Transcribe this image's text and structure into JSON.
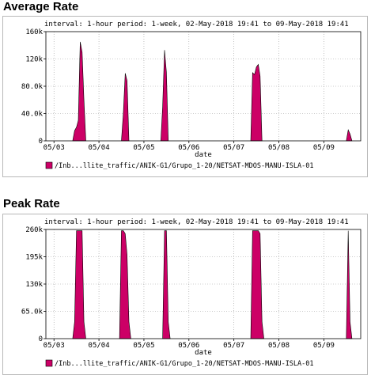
{
  "sections": [
    {
      "title": "Average Rate"
    },
    {
      "title": "Peak Rate"
    }
  ],
  "colors": {
    "series": "#cc0066",
    "outline": "#000000",
    "grid": "#999999",
    "frame": "#b8b8b8"
  },
  "chart_data": [
    {
      "type": "area",
      "header": "interval: 1-hour  period: 1-week, 02-May-2018 19:41 to 09-May-2018 19:41",
      "xlabel": "date",
      "ylabel": "",
      "x_tick_labels": [
        "05/03",
        "05/04",
        "05/05",
        "05/06",
        "05/07",
        "05/08",
        "05/09"
      ],
      "y_tick_labels": [
        "0",
        "40.0k",
        "80.0k",
        "120k",
        "160k"
      ],
      "ylim": [
        0,
        160000
      ],
      "xlim": [
        "2018-05-02T19:41",
        "2018-05-09T19:41"
      ],
      "grid": true,
      "legend": {
        "position": "bottom-left"
      },
      "series": [
        {
          "name": "/Inb...llite_traffic/ANIK-G1/Grupo_1-20/NETSAT-MDOS-MANU-ISLA-01",
          "points": [
            [
              "2018-05-03T10:00",
              0
            ],
            [
              "2018-05-03T11:00",
              15000
            ],
            [
              "2018-05-03T12:00",
              20000
            ],
            [
              "2018-05-03T13:00",
              30000
            ],
            [
              "2018-05-03T14:00",
              145000
            ],
            [
              "2018-05-03T15:00",
              130000
            ],
            [
              "2018-05-03T16:00",
              60000
            ],
            [
              "2018-05-03T17:00",
              0
            ],
            [
              "2018-05-04T12:00",
              0
            ],
            [
              "2018-05-04T13:00",
              40000
            ],
            [
              "2018-05-04T14:00",
              99000
            ],
            [
              "2018-05-04T15:00",
              88000
            ],
            [
              "2018-05-04T16:00",
              0
            ],
            [
              "2018-05-05T09:00",
              0
            ],
            [
              "2018-05-05T10:00",
              50000
            ],
            [
              "2018-05-05T11:00",
              133000
            ],
            [
              "2018-05-05T12:00",
              100000
            ],
            [
              "2018-05-05T13:00",
              0
            ],
            [
              "2018-05-07T09:00",
              0
            ],
            [
              "2018-05-07T10:00",
              100000
            ],
            [
              "2018-05-07T11:00",
              97000
            ],
            [
              "2018-05-07T12:00",
              108000
            ],
            [
              "2018-05-07T13:00",
              112000
            ],
            [
              "2018-05-07T14:00",
              95000
            ],
            [
              "2018-05-07T15:00",
              0
            ],
            [
              "2018-05-09T12:00",
              0
            ],
            [
              "2018-05-09T13:00",
              16000
            ],
            [
              "2018-05-09T14:00",
              10000
            ],
            [
              "2018-05-09T15:00",
              0
            ]
          ]
        }
      ]
    },
    {
      "type": "area",
      "header": "interval: 1-hour  period: 1-week, 02-May-2018 19:41 to 09-May-2018 19:41",
      "xlabel": "date",
      "ylabel": "",
      "x_tick_labels": [
        "05/03",
        "05/04",
        "05/05",
        "05/06",
        "05/07",
        "05/08",
        "05/09"
      ],
      "y_tick_labels": [
        "0",
        "65.0k",
        "130k",
        "195k",
        "260k"
      ],
      "ylim": [
        0,
        260000
      ],
      "xlim": [
        "2018-05-02T19:41",
        "2018-05-09T19:41"
      ],
      "grid": true,
      "legend": {
        "position": "bottom-left"
      },
      "series": [
        {
          "name": "/Inb...llite_traffic/ANIK-G1/Grupo_1-20/NETSAT-MDOS-MANU-ISLA-01",
          "points": [
            [
              "2018-05-03T10:00",
              0
            ],
            [
              "2018-05-03T11:00",
              40000
            ],
            [
              "2018-05-03T12:00",
              257000
            ],
            [
              "2018-05-03T13:00",
              257000
            ],
            [
              "2018-05-03T14:00",
              257000
            ],
            [
              "2018-05-03T15:00",
              257000
            ],
            [
              "2018-05-03T16:00",
              40000
            ],
            [
              "2018-05-03T17:00",
              0
            ],
            [
              "2018-05-04T11:00",
              0
            ],
            [
              "2018-05-04T12:00",
              257000
            ],
            [
              "2018-05-04T13:00",
              257000
            ],
            [
              "2018-05-04T14:00",
              250000
            ],
            [
              "2018-05-04T15:00",
              200000
            ],
            [
              "2018-05-04T16:00",
              40000
            ],
            [
              "2018-05-04T17:00",
              0
            ],
            [
              "2018-05-05T10:00",
              0
            ],
            [
              "2018-05-05T11:00",
              257000
            ],
            [
              "2018-05-05T12:00",
              257000
            ],
            [
              "2018-05-05T13:00",
              40000
            ],
            [
              "2018-05-05T14:00",
              0
            ],
            [
              "2018-05-07T09:00",
              0
            ],
            [
              "2018-05-07T10:00",
              257000
            ],
            [
              "2018-05-07T11:00",
              257000
            ],
            [
              "2018-05-07T12:00",
              257000
            ],
            [
              "2018-05-07T13:00",
              257000
            ],
            [
              "2018-05-07T14:00",
              250000
            ],
            [
              "2018-05-07T15:00",
              40000
            ],
            [
              "2018-05-07T16:00",
              0
            ],
            [
              "2018-05-09T12:00",
              0
            ],
            [
              "2018-05-09T13:00",
              257000
            ],
            [
              "2018-05-09T14:00",
              40000
            ],
            [
              "2018-05-09T15:00",
              0
            ]
          ]
        }
      ]
    }
  ]
}
